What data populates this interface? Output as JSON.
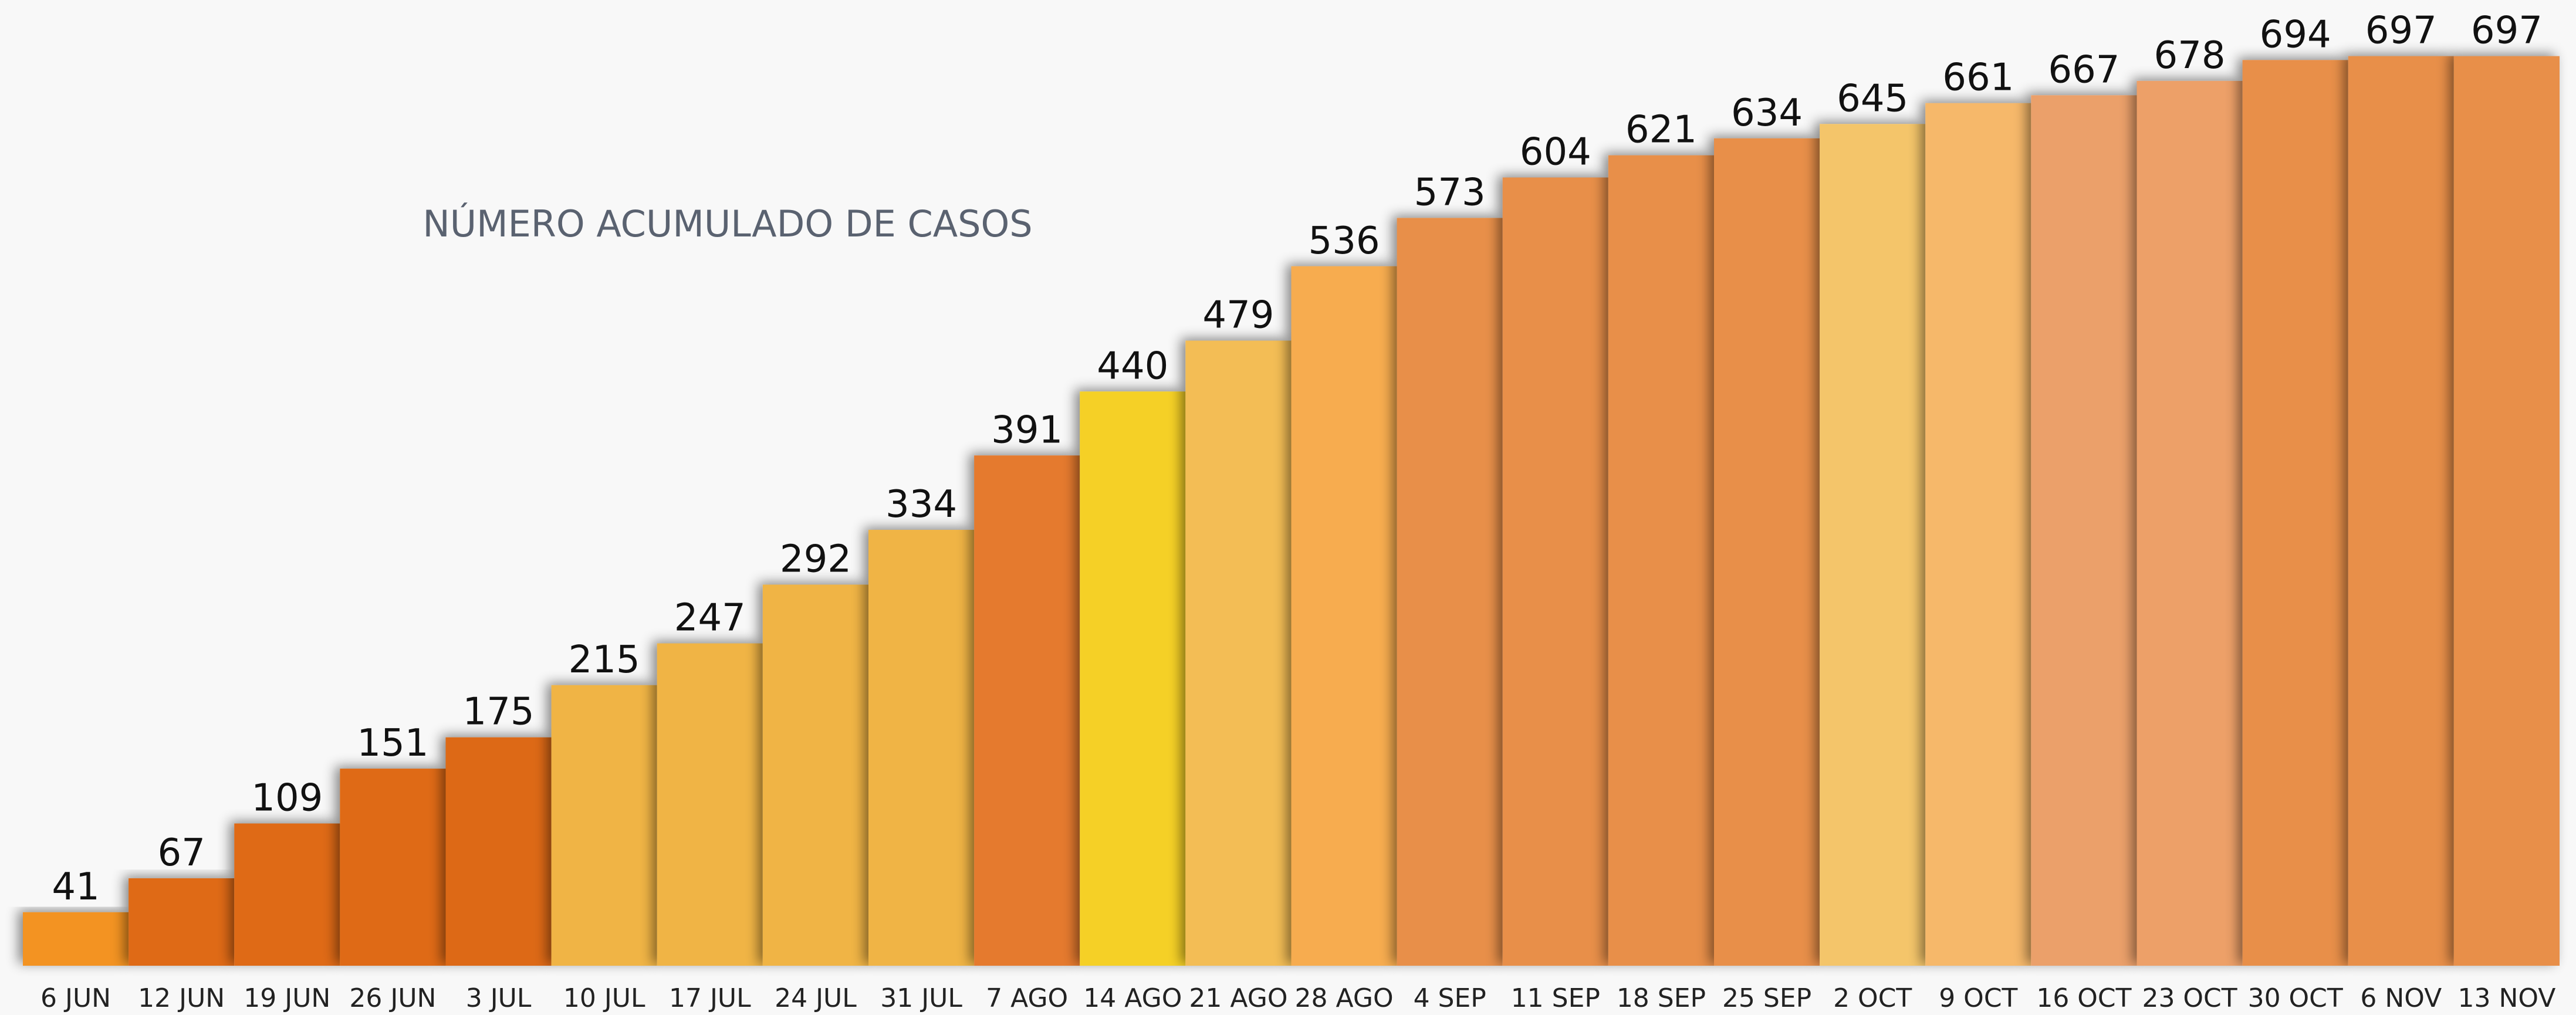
{
  "chart_data": {
    "type": "bar",
    "title": "NÚMERO ACUMULADO DE CASOS",
    "categories": [
      "6 JUN",
      "12 JUN",
      "19 JUN",
      "26 JUN",
      "3 JUL",
      "10 JUL",
      "17 JUL",
      "24 JUL",
      "31 JUL",
      "7 AGO",
      "14 AGO",
      "21 AGO",
      "28 AGO",
      "4 SEP",
      "11 SEP",
      "18 SEP",
      "25 SEP",
      "2 OCT",
      "9 OCT",
      "16 OCT",
      "23 OCT",
      "30 OCT",
      "6 NOV",
      "13 NOV"
    ],
    "values": [
      41,
      67,
      109,
      151,
      175,
      215,
      247,
      292,
      334,
      391,
      440,
      479,
      536,
      573,
      604,
      621,
      634,
      645,
      661,
      667,
      678,
      694,
      697,
      697
    ],
    "colors": [
      "#f39322",
      "#df6b14",
      "#df6b14",
      "#df6b14",
      "#dd6912",
      "#f0b445",
      "#f0b445",
      "#f0b445",
      "#f0b445",
      "#e57a2e",
      "#f5d026",
      "#f3bd55",
      "#f7ac50",
      "#e88f4a",
      "#e88f4a",
      "#e88f4a",
      "#e88f4a",
      "#f4c56a",
      "#f6b86a",
      "#eba06a",
      "#eda068",
      "#e88f4a",
      "#e88f4a",
      "#e88f4a"
    ],
    "ylim": [
      0,
      740
    ]
  }
}
